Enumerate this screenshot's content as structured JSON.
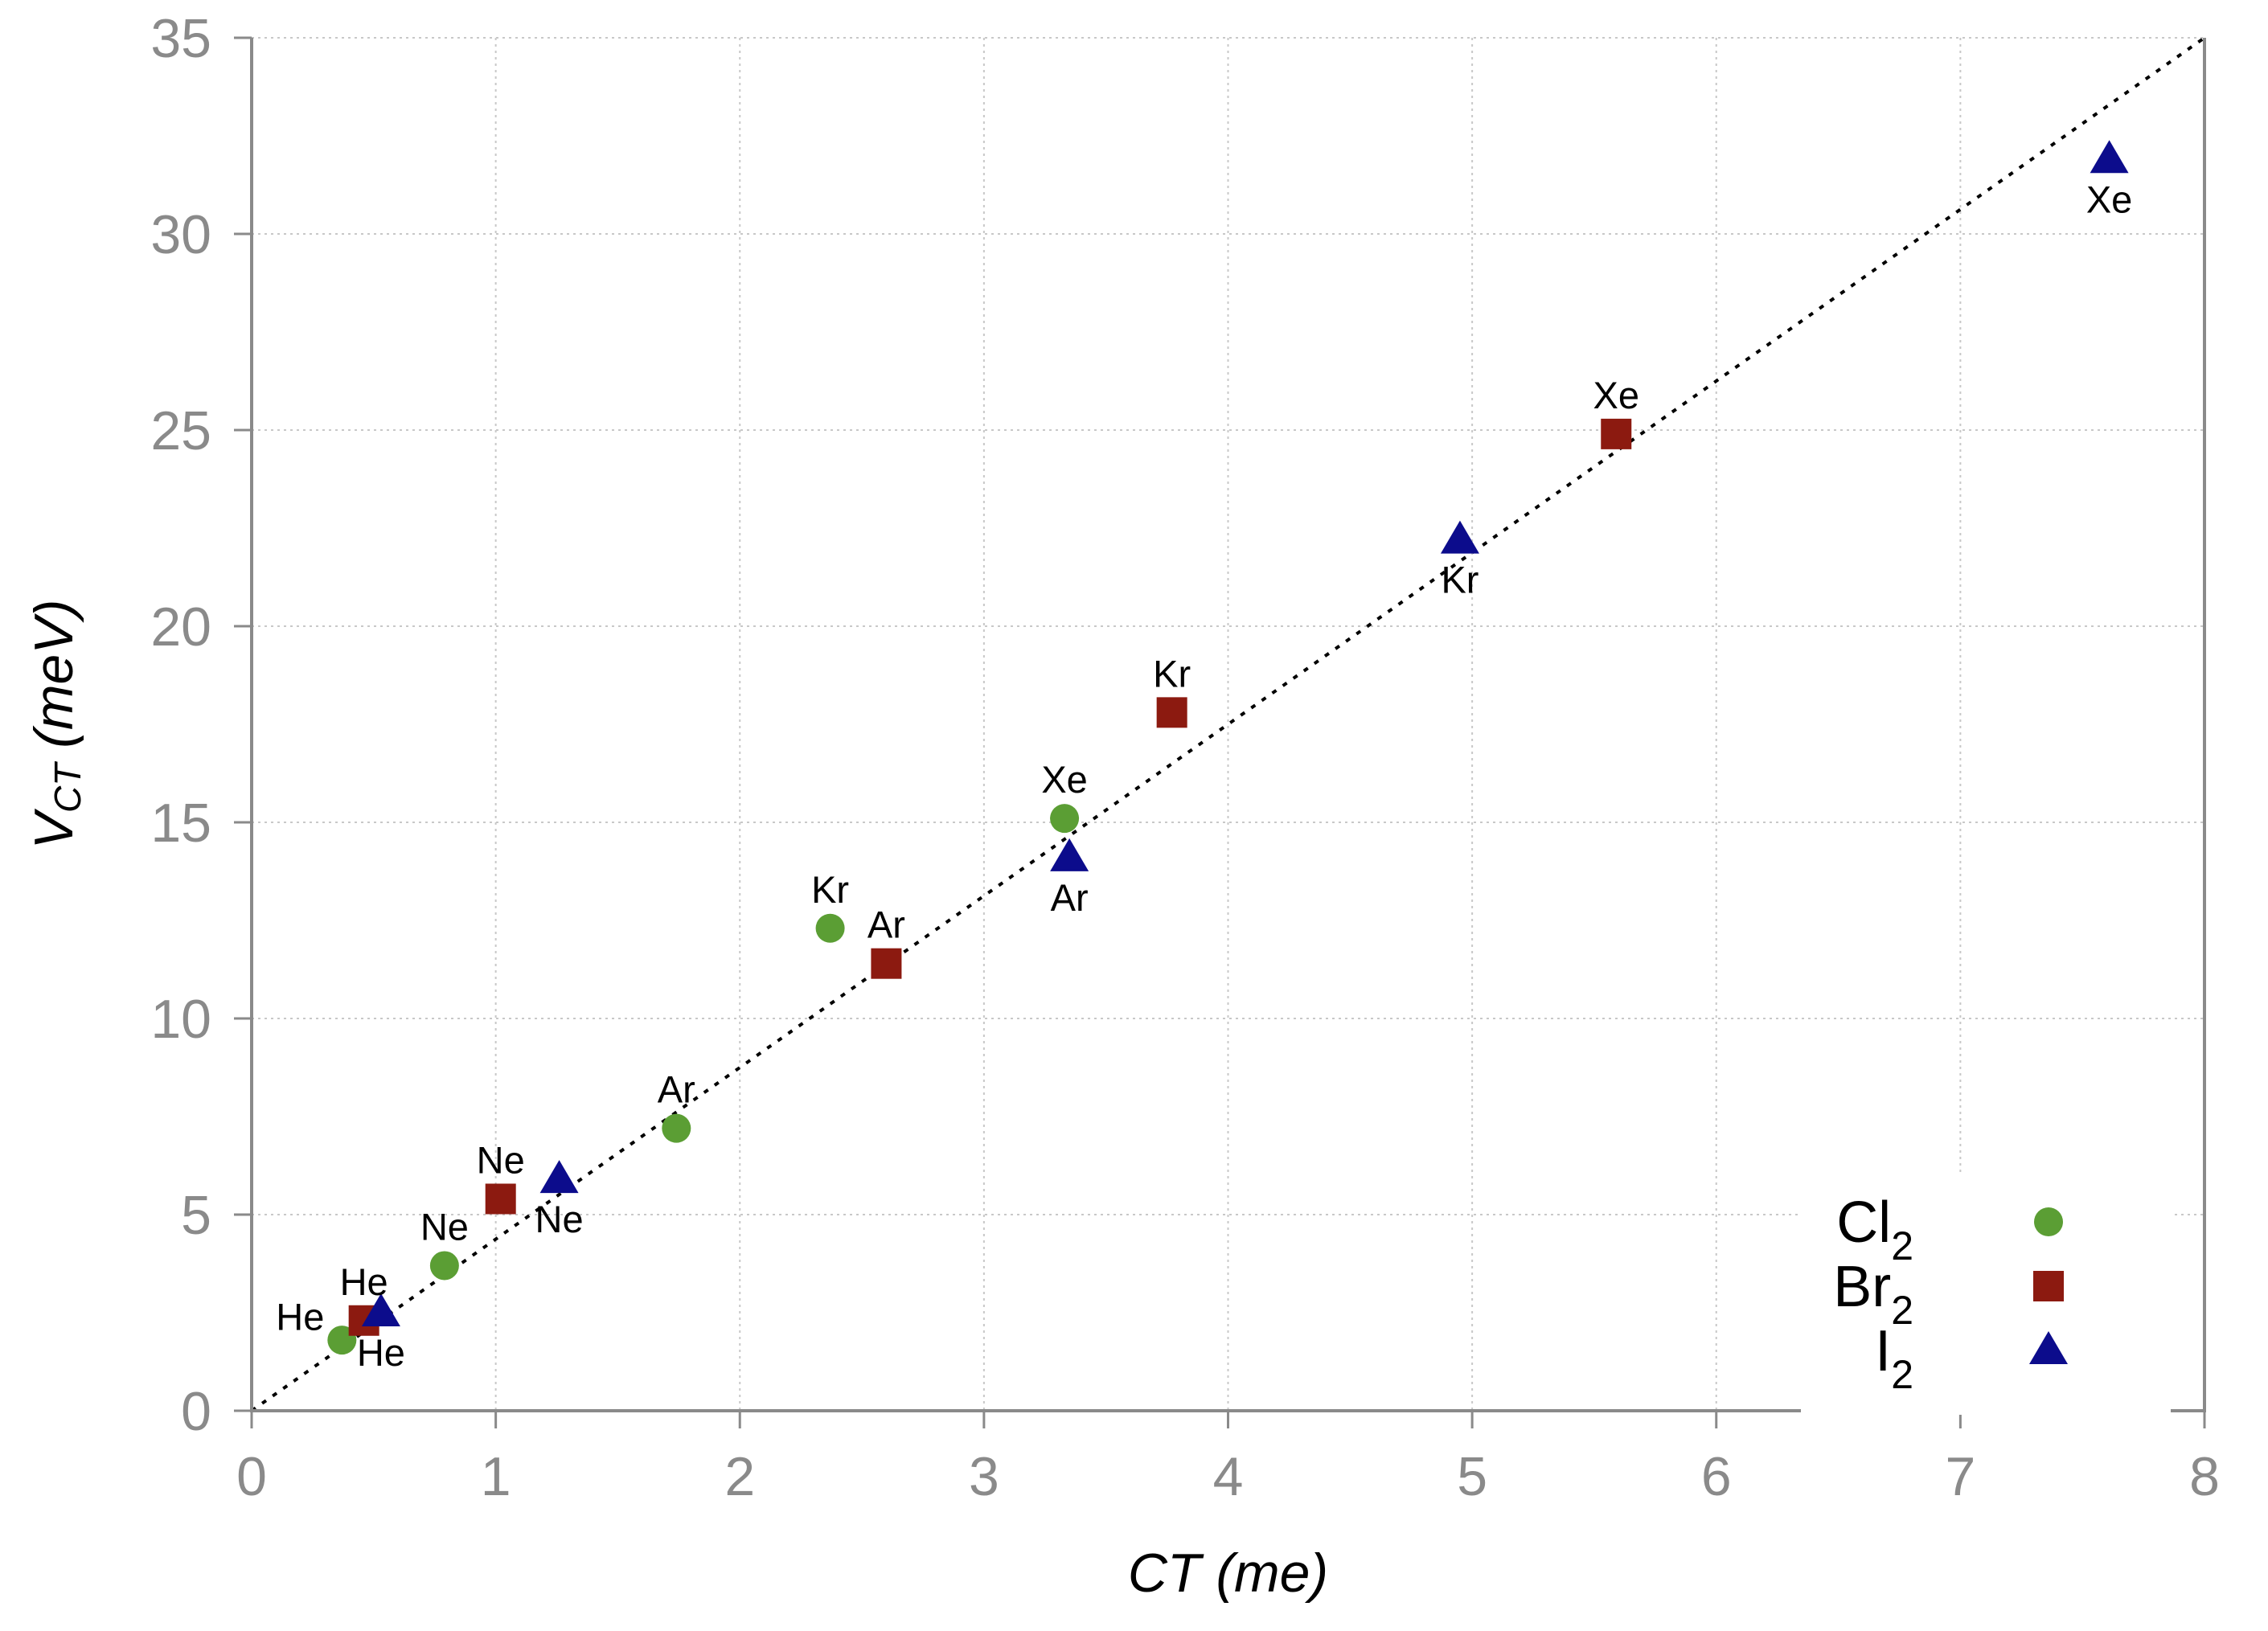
{
  "chart_data": {
    "type": "scatter",
    "title": "",
    "xlabel": "CT (me)",
    "ylabel_main": "V",
    "ylabel_sub": "CT",
    "ylabel_unit": " (meV)",
    "xlim": [
      0,
      8
    ],
    "ylim": [
      0,
      35
    ],
    "xticks": [
      0,
      1,
      2,
      3,
      4,
      5,
      6,
      7,
      8
    ],
    "yticks": [
      0,
      5,
      10,
      15,
      20,
      25,
      30,
      35
    ],
    "grid": true,
    "legend_position": "bottom-right",
    "reference_line": {
      "style": "dotted",
      "from": [
        0,
        0
      ],
      "to": [
        8,
        35
      ]
    },
    "series": [
      {
        "name": "Cl",
        "name_sub": "2",
        "color": "#5b9e34",
        "marker": "circle",
        "points": [
          {
            "label": "He",
            "x": 0.37,
            "y": 1.8
          },
          {
            "label": "Ne",
            "x": 0.79,
            "y": 3.7
          },
          {
            "label": "Ar",
            "x": 1.74,
            "y": 7.2
          },
          {
            "label": "Kr",
            "x": 2.37,
            "y": 12.3
          },
          {
            "label": "Xe",
            "x": 3.33,
            "y": 15.1
          }
        ]
      },
      {
        "name": "Br",
        "name_sub": "2",
        "color": "#8c1a10",
        "marker": "square",
        "points": [
          {
            "label": "He",
            "x": 0.46,
            "y": 2.3
          },
          {
            "label": "Ne",
            "x": 1.02,
            "y": 5.4
          },
          {
            "label": "Ar",
            "x": 2.6,
            "y": 11.4
          },
          {
            "label": "Kr",
            "x": 3.77,
            "y": 17.8
          },
          {
            "label": "Xe",
            "x": 5.59,
            "y": 24.9
          }
        ]
      },
      {
        "name": "I",
        "name_sub": "2",
        "color": "#0c0c8c",
        "marker": "triangle",
        "points": [
          {
            "label": "He",
            "x": 0.53,
            "y": 2.5
          },
          {
            "label": "Ne",
            "x": 1.26,
            "y": 5.9
          },
          {
            "label": "Ar",
            "x": 3.35,
            "y": 14.1
          },
          {
            "label": "Kr",
            "x": 4.95,
            "y": 22.2
          },
          {
            "label": "Xe",
            "x": 7.61,
            "y": 31.9
          }
        ]
      }
    ]
  }
}
